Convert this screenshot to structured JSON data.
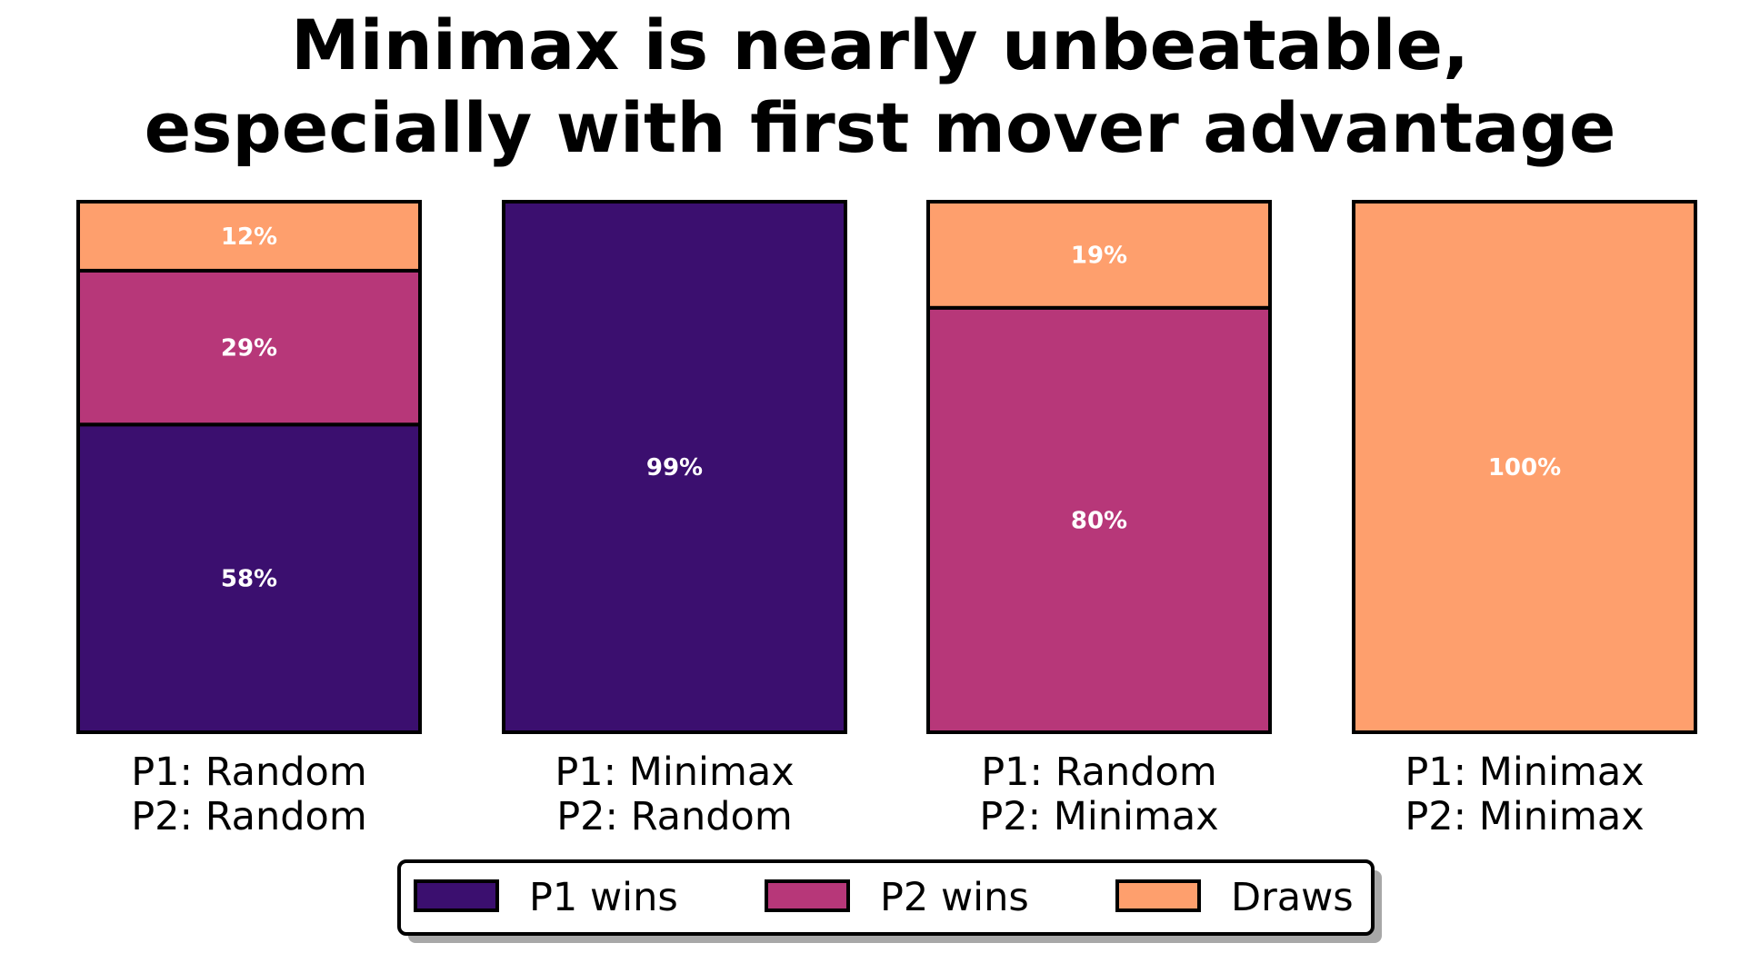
{
  "chart_data": {
    "type": "bar",
    "stacked": true,
    "title": "Minimax is nearly unbeatable,\nespecially with first mover advantage",
    "xlabel": "",
    "ylabel": "",
    "ylim": [
      0,
      100
    ],
    "grid": false,
    "categories": [
      "P1: Random\nP2: Random",
      "P1: Minimax\nP2: Random",
      "P1: Random\nP2: Minimax",
      "P1: Minimax\nP2: Minimax"
    ],
    "series": [
      {
        "name": "P1 wins",
        "color": "#3b0f6f",
        "values": [
          58,
          99,
          0,
          0
        ]
      },
      {
        "name": "P2 wins",
        "color": "#b73779",
        "values": [
          29,
          0,
          80,
          0
        ]
      },
      {
        "name": "Draws",
        "color": "#fe9f6d",
        "values": [
          12,
          0,
          19,
          100
        ]
      }
    ],
    "legend": "bottom-center"
  }
}
